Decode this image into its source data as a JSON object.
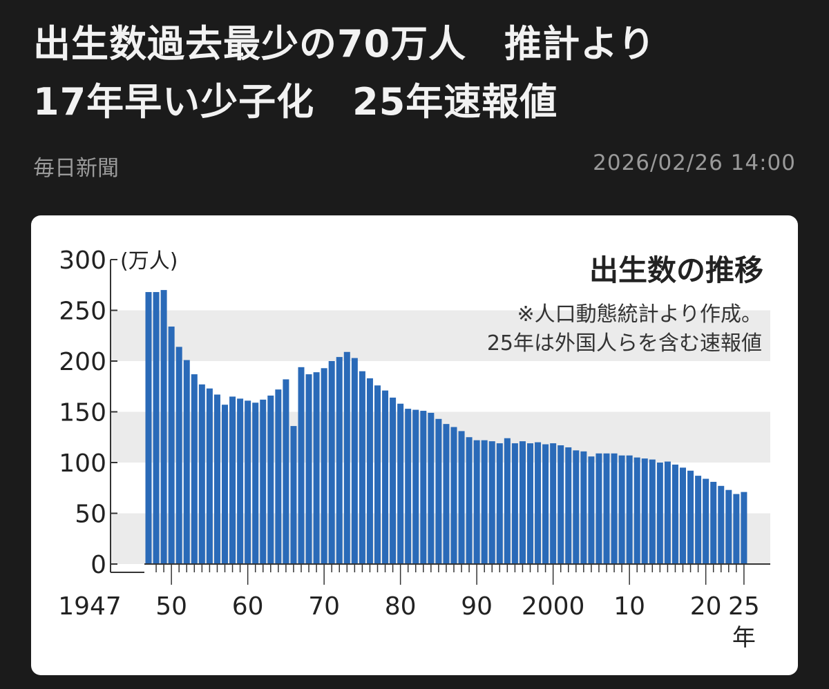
{
  "article": {
    "title_lines": [
      "出生数過去最少の70万人　推計より",
      "17年早い少子化　25年速報値"
    ],
    "source": "毎日新聞",
    "date": "2026/02/26  14:00"
  },
  "colors": {
    "bar": "#2a6ab8",
    "band": "#ebebeb",
    "background": "#1b1b1b"
  },
  "chart_data": {
    "type": "bar",
    "title": "出生数の推移",
    "notes": [
      "※人口動態統計より作成。",
      "25年は外国人らを含む速報値"
    ],
    "ylabel": "(万人)",
    "xlabel": "年",
    "ylim": [
      0,
      300
    ],
    "yticks": [
      "0",
      "50",
      "100",
      "150",
      "200",
      "250",
      "300"
    ],
    "xticks": [
      {
        "year": 1947,
        "label": "1947"
      },
      {
        "year": 1950,
        "label": "50"
      },
      {
        "year": 1960,
        "label": "60"
      },
      {
        "year": 1970,
        "label": "70"
      },
      {
        "year": 1980,
        "label": "80"
      },
      {
        "year": 1990,
        "label": "90"
      },
      {
        "year": 2000,
        "label": "2000"
      },
      {
        "year": 2010,
        "label": "10"
      },
      {
        "year": 2020,
        "label": "20"
      },
      {
        "year": 2025,
        "label": "25"
      }
    ],
    "grid_bands": [
      [
        0,
        50
      ],
      [
        100,
        150
      ],
      [
        200,
        250
      ]
    ],
    "x": [
      1947,
      1948,
      1949,
      1950,
      1951,
      1952,
      1953,
      1954,
      1955,
      1956,
      1957,
      1958,
      1959,
      1960,
      1961,
      1962,
      1963,
      1964,
      1965,
      1966,
      1967,
      1968,
      1969,
      1970,
      1971,
      1972,
      1973,
      1974,
      1975,
      1976,
      1977,
      1978,
      1979,
      1980,
      1981,
      1982,
      1983,
      1984,
      1985,
      1986,
      1987,
      1988,
      1989,
      1990,
      1991,
      1992,
      1993,
      1994,
      1995,
      1996,
      1997,
      1998,
      1999,
      2000,
      2001,
      2002,
      2003,
      2004,
      2005,
      2006,
      2007,
      2008,
      2009,
      2010,
      2011,
      2012,
      2013,
      2014,
      2015,
      2016,
      2017,
      2018,
      2019,
      2020,
      2021,
      2022,
      2023,
      2024,
      2025
    ],
    "values": [
      268,
      268,
      270,
      234,
      214,
      201,
      187,
      177,
      173,
      167,
      157,
      165,
      163,
      161,
      159,
      162,
      166,
      172,
      182,
      136,
      194,
      187,
      189,
      193,
      200,
      204,
      209,
      203,
      190,
      183,
      176,
      171,
      164,
      158,
      153,
      152,
      151,
      149,
      143,
      138,
      135,
      131,
      125,
      122,
      122,
      121,
      119,
      124,
      119,
      121,
      119,
      120,
      118,
      119,
      117,
      115,
      112,
      111,
      106,
      109,
      109,
      109,
      107,
      107,
      105,
      104,
      103,
      100,
      101,
      98,
      95,
      92,
      87,
      84,
      81,
      77,
      73,
      69,
      71
    ]
  }
}
